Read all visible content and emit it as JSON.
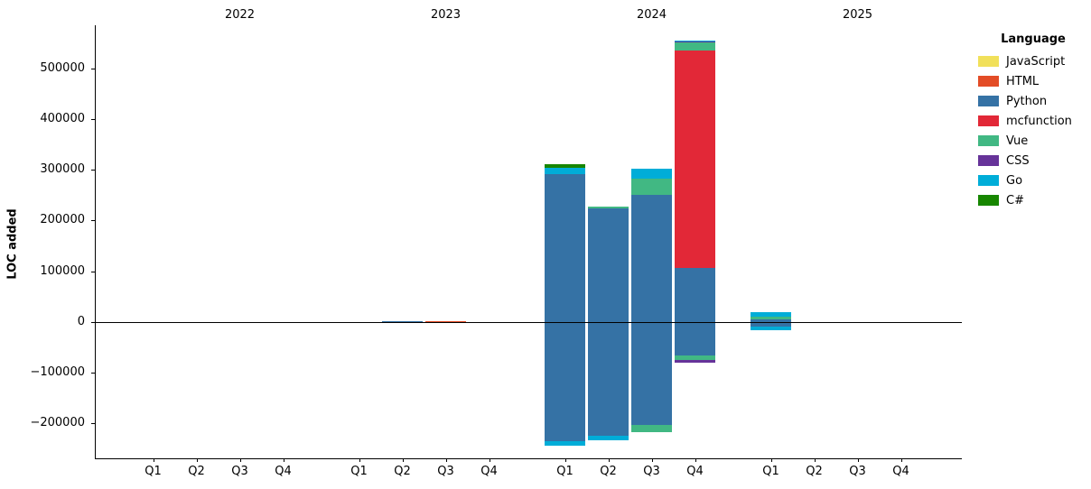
{
  "figure": {
    "background": "#ffffff",
    "axis_color": "#000000"
  },
  "legend": {
    "title": "Language",
    "items": [
      {
        "label": "JavaScript",
        "color": "#f1e05a"
      },
      {
        "label": "HTML",
        "color": "#e34c26"
      },
      {
        "label": "Python",
        "color": "#3572A5"
      },
      {
        "label": "mcfunction",
        "color": "#E22837"
      },
      {
        "label": "Vue",
        "color": "#41b883"
      },
      {
        "label": "CSS",
        "color": "#663399"
      },
      {
        "label": "Go",
        "color": "#00ADD8"
      },
      {
        "label": "C#",
        "color": "#178600"
      }
    ]
  },
  "chart_data": {
    "type": "bar",
    "stacked": true,
    "title": "",
    "xlabel": "",
    "ylabel": "LOC added",
    "grid": false,
    "legend_position": "right",
    "years": [
      "2022",
      "2023",
      "2024",
      "2025"
    ],
    "quarter_labels": [
      "Q1",
      "Q2",
      "Q3",
      "Q4"
    ],
    "categories": [
      "2022-Q1",
      "2022-Q2",
      "2022-Q3",
      "2022-Q4",
      "2023-Q1",
      "2023-Q2",
      "2023-Q3",
      "2023-Q4",
      "2024-Q1",
      "2024-Q2",
      "2024-Q3",
      "2024-Q4",
      "2025-Q1",
      "2025-Q2",
      "2025-Q3",
      "2025-Q4"
    ],
    "y_ticks": [
      -200000,
      -100000,
      0,
      100000,
      200000,
      300000,
      400000,
      500000
    ],
    "ylim": [
      -269000,
      585000
    ],
    "series": [
      {
        "name": "JavaScript",
        "color": "#f1e05a",
        "pos": [
          0,
          0,
          0,
          0,
          0,
          0,
          0,
          0,
          0,
          0,
          0,
          0,
          0,
          0,
          0,
          0
        ],
        "neg": [
          0,
          0,
          0,
          0,
          0,
          0,
          0,
          0,
          0,
          0,
          0,
          0,
          0,
          0,
          0,
          0
        ]
      },
      {
        "name": "HTML",
        "color": "#e34c26",
        "pos": [
          0,
          0,
          0,
          0,
          0,
          0,
          2000,
          0,
          0,
          0,
          0,
          0,
          0,
          0,
          0,
          0
        ],
        "neg": [
          0,
          0,
          0,
          0,
          0,
          0,
          -2000,
          0,
          0,
          0,
          0,
          0,
          0,
          0,
          0,
          0
        ]
      },
      {
        "name": "Python",
        "color": "#3572A5",
        "pos": [
          0,
          0,
          0,
          0,
          0,
          2000,
          0,
          0,
          291000,
          224000,
          250000,
          107000,
          4500,
          0,
          0,
          0
        ],
        "neg": [
          0,
          0,
          0,
          0,
          0,
          -2000,
          0,
          0,
          -235000,
          -224000,
          -203000,
          -66000,
          -10000,
          0,
          0,
          0
        ]
      },
      {
        "name": "mcfunction",
        "color": "#E22837",
        "pos": [
          0,
          0,
          0,
          0,
          0,
          0,
          0,
          0,
          0,
          0,
          0,
          428000,
          0,
          0,
          0,
          0
        ],
        "neg": [
          0,
          0,
          0,
          0,
          0,
          0,
          0,
          0,
          0,
          0,
          0,
          0,
          0,
          0,
          0,
          0
        ]
      },
      {
        "name": "Vue",
        "color": "#41b883",
        "pos": [
          0,
          0,
          0,
          0,
          0,
          0,
          0,
          0,
          0,
          3000,
          33000,
          16000,
          5500,
          0,
          0,
          0
        ],
        "neg": [
          0,
          0,
          0,
          0,
          0,
          0,
          0,
          0,
          0,
          0,
          -14000,
          -9000,
          0,
          0,
          0,
          0
        ]
      },
      {
        "name": "CSS",
        "color": "#663399",
        "pos": [
          0,
          0,
          0,
          0,
          0,
          0,
          0,
          0,
          0,
          0,
          0,
          1500,
          0,
          0,
          0,
          0
        ],
        "neg": [
          0,
          0,
          0,
          0,
          0,
          0,
          0,
          0,
          0,
          0,
          0,
          -6000,
          0,
          0,
          0,
          0
        ]
      },
      {
        "name": "Go",
        "color": "#00ADD8",
        "pos": [
          0,
          0,
          0,
          0,
          0,
          0,
          0,
          0,
          13500,
          0,
          19500,
          2500,
          9500,
          0,
          0,
          0
        ],
        "neg": [
          0,
          0,
          0,
          0,
          0,
          0,
          0,
          0,
          -10000,
          -9000,
          0,
          0,
          -7000,
          0,
          0,
          0
        ]
      },
      {
        "name": "C#",
        "color": "#178600",
        "pos": [
          0,
          0,
          0,
          0,
          0,
          0,
          0,
          0,
          7000,
          0,
          0,
          0,
          0,
          0,
          0,
          0
        ],
        "neg": [
          0,
          0,
          0,
          0,
          0,
          0,
          0,
          0,
          0,
          0,
          0,
          0,
          0,
          0,
          0,
          0
        ]
      }
    ]
  }
}
